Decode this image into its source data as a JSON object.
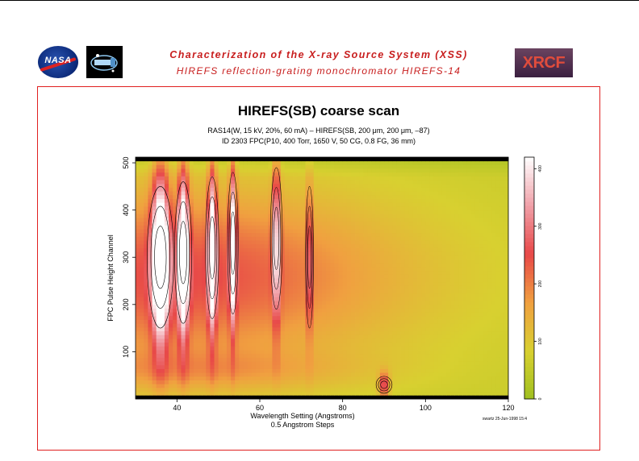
{
  "header": {
    "title": "Characterization of the X-ray Source System (XSS)",
    "subtitle": "HIREFS reflection-grating monochromator   HIREFS-14",
    "logos": {
      "left": "NASA",
      "right": "XRCF"
    }
  },
  "chart_data": {
    "type": "heatmap",
    "title": "HIREFS(SB) coarse scan",
    "subtitle_lines": [
      "RAS14(W, 15 kV, 20%, 60 mA) – HIREFS(SB, 200 μm, 200 μm, –87)",
      "ID 2303 FPC(P10, 400 Torr, 1650 V, 50 CG, 0.8 FG, 36 mm)"
    ],
    "xlabel": "Wavelength Setting (Angstroms)",
    "xlabel2": "0.5 Angstrom Steps",
    "ylabel": "FPC Pulse Height Channel",
    "xlim": [
      30,
      120
    ],
    "ylim": [
      0,
      512
    ],
    "xticks": [
      40,
      60,
      80,
      100,
      120
    ],
    "yticks": [
      100,
      200,
      300,
      400,
      500
    ],
    "colorbar": {
      "range": [
        0,
        420
      ],
      "ticks": [
        0,
        100,
        200,
        300,
        400
      ],
      "colors": [
        "#a0c020",
        "#d8d030",
        "#f0a040",
        "#e84848",
        "#f0a0a8",
        "#ffffff"
      ]
    },
    "peaks": [
      {
        "x": 36,
        "y": 300,
        "width": 2.0,
        "amp": 420
      },
      {
        "x": 41.5,
        "y": 310,
        "width": 1.3,
        "amp": 380
      },
      {
        "x": 48.5,
        "y": 320,
        "width": 1.0,
        "amp": 330
      },
      {
        "x": 53.5,
        "y": 330,
        "width": 0.8,
        "amp": 300
      },
      {
        "x": 64,
        "y": 340,
        "width": 0.9,
        "amp": 260
      },
      {
        "x": 72,
        "y": 300,
        "width": 0.6,
        "amp": 170
      },
      {
        "x": 90,
        "y": 30,
        "width": 1.2,
        "amp": 200
      }
    ],
    "stamp": "swartz 25-Jun-1998 15:4"
  }
}
